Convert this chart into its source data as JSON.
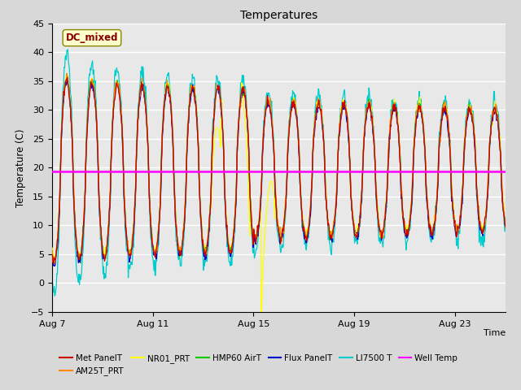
{
  "title": "Temperatures",
  "xlabel": "Time",
  "ylabel": "Temperature (C)",
  "ylim": [
    -5,
    45
  ],
  "yticks": [
    -5,
    0,
    5,
    10,
    15,
    20,
    25,
    30,
    35,
    40,
    45
  ],
  "bg_color": "#d8d8d8",
  "plot_bg_color": "#e8e8e8",
  "well_temp_value": 19.3,
  "colors": {
    "Met PanelT": "#cc0000",
    "AM25T_PRT": "#ff8800",
    "NR01_PRT": "#ffff00",
    "HMP60 AirT": "#00cc00",
    "Flux PanelT": "#0000cc",
    "LI7500 T": "#00cccc",
    "Well Temp": "#ff00ff"
  },
  "annotation_text": "DC_mixed",
  "annotation_color": "#880000",
  "annotation_bg": "#ffffcc",
  "annotation_border": "#888800",
  "xtick_positions": [
    0,
    4,
    8,
    12,
    16
  ],
  "xtick_labels": [
    "Aug 7",
    "Aug 11",
    "Aug 15",
    "Aug 19",
    "Aug 23"
  ],
  "n_days": 18,
  "well_temp": 19.3
}
